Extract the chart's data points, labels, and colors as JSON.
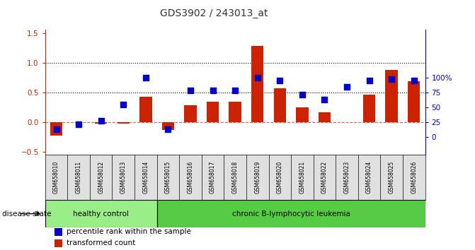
{
  "title": "GDS3902 / 243013_at",
  "samples": [
    "GSM658010",
    "GSM658011",
    "GSM658012",
    "GSM658013",
    "GSM658014",
    "GSM658015",
    "GSM658016",
    "GSM658017",
    "GSM658018",
    "GSM658019",
    "GSM658020",
    "GSM658021",
    "GSM658022",
    "GSM658023",
    "GSM658024",
    "GSM658025",
    "GSM658026"
  ],
  "bar_values": [
    -0.22,
    0.0,
    -0.02,
    -0.02,
    0.43,
    -0.13,
    0.29,
    0.34,
    0.34,
    1.28,
    0.57,
    0.25,
    0.17,
    0.0,
    0.46,
    0.88,
    0.69
  ],
  "dot_values_pct": [
    13,
    22,
    27,
    55,
    100,
    13,
    78,
    78,
    78,
    100,
    95,
    72,
    63,
    85,
    95,
    98,
    95
  ],
  "bar_color": "#cc2200",
  "dot_color": "#0000cc",
  "ylim_left": [
    -0.55,
    1.55
  ],
  "yticks_left": [
    -0.5,
    0.0,
    0.5,
    1.0,
    1.5
  ],
  "ytick_labels_right": [
    "0",
    "25",
    "50",
    "75",
    "100%"
  ],
  "hlines": [
    0.5,
    1.0
  ],
  "disease_state_label": "disease state",
  "group1_label": "healthy control",
  "group2_label": "chronic B-lymphocytic leukemia",
  "group1_count": 5,
  "group2_count": 12,
  "legend_bar_label": "transformed count",
  "legend_dot_label": "percentile rank within the sample",
  "bg_plot": "#ffffff",
  "bg_label": "#e0e0e0",
  "group1_color": "#99ee88",
  "group2_color": "#55cc44",
  "dot_size": 30,
  "bar_width": 0.55
}
